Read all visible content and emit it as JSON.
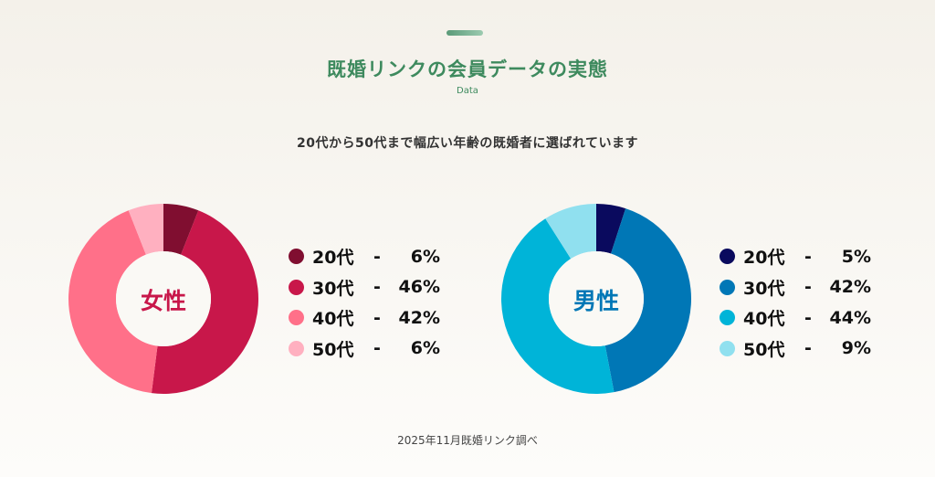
{
  "header": {
    "title": "既婚リンクの会員データの実態",
    "subtitle": "Data",
    "lead": "20代から50代まで幅広い年齢の既婚者に選ばれています"
  },
  "chart_data": [
    {
      "type": "pie",
      "title": "女性",
      "unit": "%",
      "categories": [
        "20代",
        "30代",
        "40代",
        "50代"
      ],
      "values": [
        6,
        46,
        42,
        6
      ],
      "labels": [
        "6%",
        "46%",
        "42%",
        "6%"
      ],
      "colors": [
        "#800e30",
        "#c8174a",
        "#ff7089",
        "#ffb0c0"
      ],
      "title_color": "#c8174a",
      "legend": "right"
    },
    {
      "type": "pie",
      "title": "男性",
      "unit": "%",
      "categories": [
        "20代",
        "30代",
        "40代",
        "50代"
      ],
      "values": [
        5,
        42,
        44,
        9
      ],
      "labels": [
        "5%",
        "42%",
        "44%",
        "9%"
      ],
      "colors": [
        "#0a0a5e",
        "#0077b6",
        "#00b4d8",
        "#90e0ef"
      ],
      "title_color": "#0077b6",
      "legend": "right"
    }
  ],
  "legend_separator": "-",
  "footer": "2025年11月既婚リンク調べ"
}
